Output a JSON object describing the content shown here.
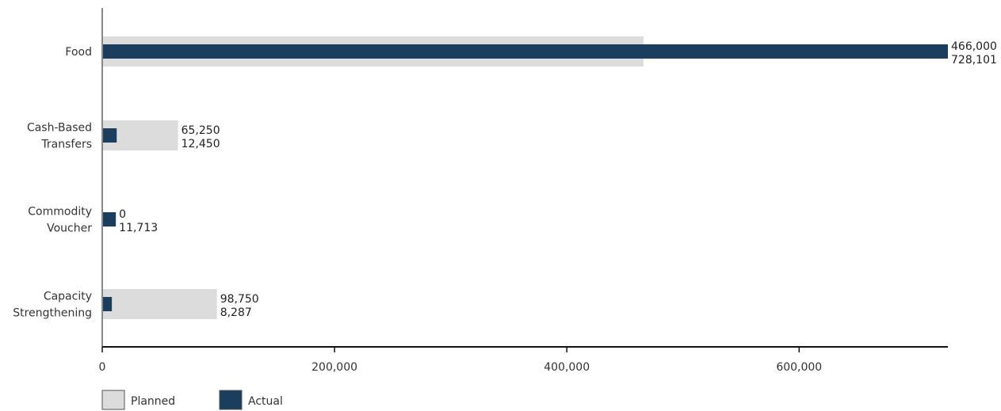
{
  "chart_data": {
    "type": "bar",
    "orientation": "horizontal",
    "categories": [
      [
        "Food"
      ],
      [
        "Cash-Based",
        "Transfers"
      ],
      [
        "Commodity",
        "Voucher"
      ],
      [
        "Capacity",
        "Strengthening"
      ]
    ],
    "series": [
      {
        "name": "Planned",
        "values": [
          466000,
          65250,
          0,
          98750
        ],
        "color": "#dcdcdc",
        "value_labels": [
          "466,000",
          "65,250",
          "0",
          "98,750"
        ]
      },
      {
        "name": "Actual",
        "values": [
          728101,
          12450,
          11713,
          8287
        ],
        "color": "#1b3e5f",
        "value_labels": [
          "728,101",
          "12,450",
          "11,713",
          "8,287"
        ]
      }
    ],
    "xlim": [
      0,
      728101
    ],
    "xticks": [
      0,
      200000,
      400000,
      600000
    ],
    "xtick_labels": [
      "0",
      "200,000",
      "400,000",
      "600,000"
    ],
    "legend": {
      "position": "bottom-left",
      "items": [
        "Planned",
        "Actual"
      ]
    },
    "grid": false
  }
}
